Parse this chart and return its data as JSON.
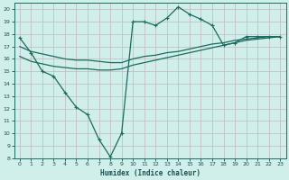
{
  "xlabel": "Humidex (Indice chaleur)",
  "xlim": [
    -0.5,
    23.5
  ],
  "ylim": [
    8,
    20.5
  ],
  "yticks": [
    8,
    9,
    10,
    11,
    12,
    13,
    14,
    15,
    16,
    17,
    18,
    19,
    20
  ],
  "xticks": [
    0,
    1,
    2,
    3,
    4,
    5,
    6,
    7,
    8,
    9,
    10,
    11,
    12,
    13,
    14,
    15,
    16,
    17,
    18,
    19,
    20,
    21,
    22,
    23
  ],
  "bg_color": "#d0eeea",
  "grid_color": "#c0b8c0",
  "line_color": "#1a6b60",
  "line1_x": [
    0,
    1,
    2,
    3,
    4,
    5,
    6,
    7,
    8,
    9,
    10,
    11,
    12,
    13,
    14,
    15,
    16,
    17,
    18,
    19,
    20,
    21,
    22,
    23
  ],
  "line1_y": [
    17.7,
    16.5,
    15.0,
    14.6,
    13.3,
    12.1,
    11.5,
    9.5,
    8.1,
    10.0,
    19.0,
    19.0,
    18.7,
    19.3,
    20.2,
    19.6,
    19.2,
    18.7,
    17.1,
    17.3,
    17.8,
    17.8,
    17.8,
    17.8
  ],
  "line2_x": [
    0,
    1,
    2,
    3,
    4,
    5,
    6,
    7,
    8,
    9,
    10,
    11,
    12,
    13,
    14,
    15,
    16,
    17,
    18,
    19,
    20,
    21,
    22,
    23
  ],
  "line2_y": [
    17.0,
    16.6,
    16.4,
    16.2,
    16.0,
    15.9,
    15.9,
    15.8,
    15.7,
    15.7,
    16.0,
    16.2,
    16.3,
    16.5,
    16.6,
    16.8,
    17.0,
    17.2,
    17.3,
    17.5,
    17.6,
    17.7,
    17.8,
    17.8
  ],
  "line3_x": [
    0,
    1,
    2,
    3,
    4,
    5,
    6,
    7,
    8,
    9,
    10,
    11,
    12,
    13,
    14,
    15,
    16,
    17,
    18,
    19,
    20,
    21,
    22,
    23
  ],
  "line3_y": [
    16.2,
    15.8,
    15.6,
    15.4,
    15.3,
    15.2,
    15.2,
    15.1,
    15.1,
    15.2,
    15.5,
    15.7,
    15.9,
    16.1,
    16.3,
    16.5,
    16.7,
    16.9,
    17.1,
    17.3,
    17.5,
    17.6,
    17.7,
    17.8
  ]
}
